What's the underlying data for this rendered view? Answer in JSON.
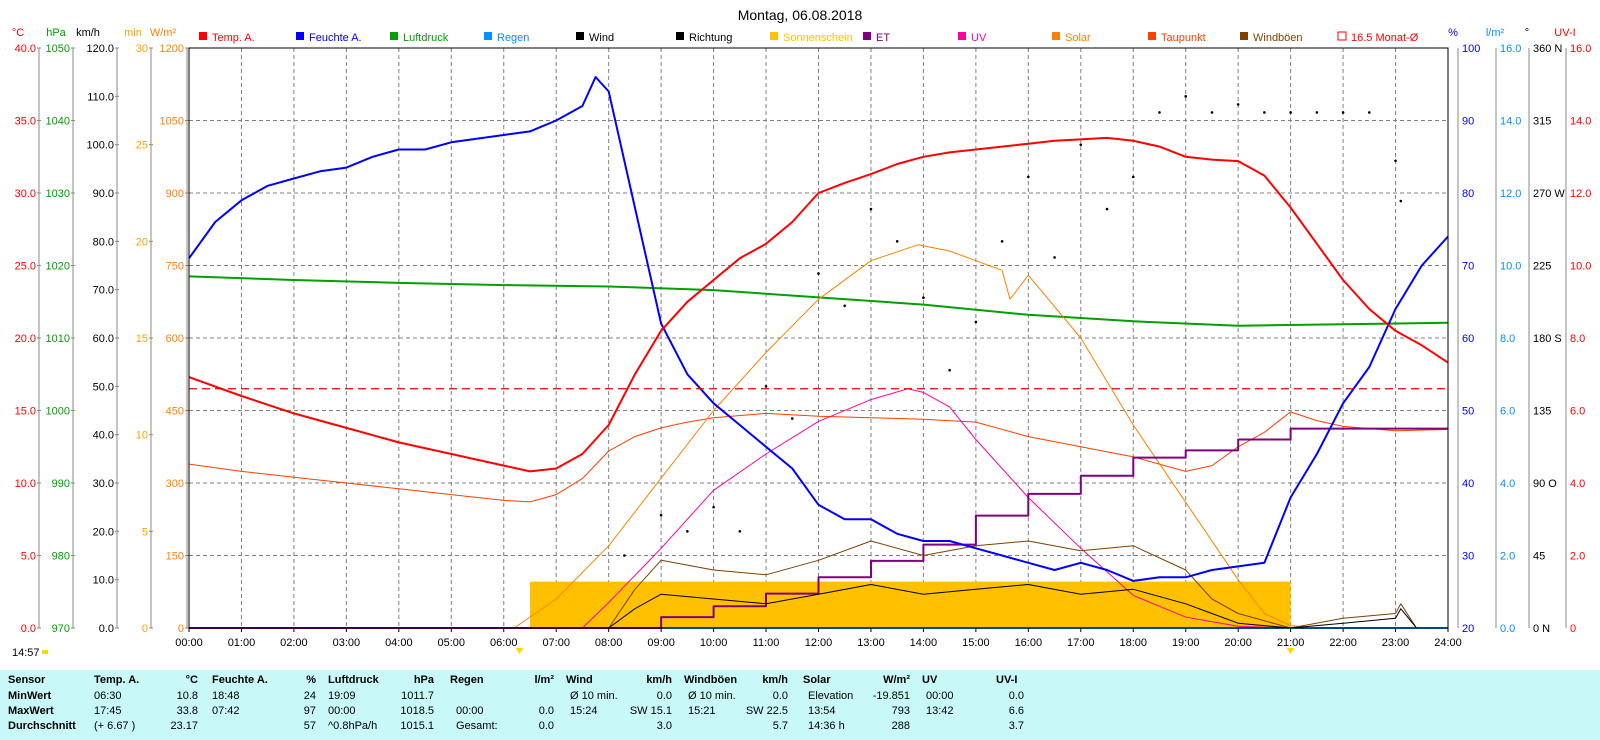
{
  "title": "Montag, 06.08.2018",
  "time_label": "14:57",
  "legend": [
    {
      "label": "Temp. A.",
      "color": "#ff0000"
    },
    {
      "label": "Feuchte A.",
      "color": "#0000ff"
    },
    {
      "label": "Luftdruck",
      "color": "#00a000"
    },
    {
      "label": "Regen",
      "color": "#0090ff"
    },
    {
      "label": "Wind",
      "color": "#000000"
    },
    {
      "label": "Richtung",
      "color": "#000000"
    },
    {
      "label": "Sonnenschein",
      "color": "#ffc000"
    },
    {
      "label": "ET",
      "color": "#800080"
    },
    {
      "label": "UV",
      "color": "#ff00a0"
    },
    {
      "label": "Solar",
      "color": "#ff8000"
    },
    {
      "label": "Taupunkt",
      "color": "#ff4000"
    },
    {
      "label": "Windböen",
      "color": "#804000"
    },
    {
      "label": "16.5 Monat-Ø",
      "color": "#ff0000"
    }
  ],
  "axes_left": [
    {
      "unit": "°C",
      "color": "#ff0000",
      "ticks": [
        "40.0",
        "35.0",
        "30.0",
        "25.0",
        "20.0",
        "15.0",
        "10.0",
        "5.0",
        "0.0"
      ]
    },
    {
      "unit": "hPa",
      "color": "#00a000",
      "ticks": [
        "1050",
        "1040",
        "1030",
        "1020",
        "1010",
        "1000",
        "990",
        "980",
        "970"
      ]
    },
    {
      "unit": "km/h",
      "color": "#000000",
      "ticks": [
        "120.0",
        "110.0",
        "100.0",
        "90.0",
        "80.0",
        "70.0",
        "60.0",
        "50.0",
        "40.0",
        "30.0",
        "20.0",
        "10.0",
        "0.0"
      ]
    },
    {
      "unit": "min",
      "color": "#ffa000",
      "ticks": [
        "30",
        "25",
        "20",
        "15",
        "10",
        "5",
        "0"
      ]
    },
    {
      "unit": "W/m²",
      "color": "#ff8000",
      "ticks": [
        "1200",
        "1050",
        "900",
        "750",
        "600",
        "450",
        "300",
        "150",
        "0"
      ]
    }
  ],
  "axes_right": [
    {
      "unit": "%",
      "color": "#0000ff",
      "ticks": [
        "100",
        "90",
        "80",
        "70",
        "60",
        "50",
        "40",
        "30",
        "20"
      ]
    },
    {
      "unit": "l/m²",
      "color": "#0090ff",
      "ticks": [
        "16.0",
        "14.0",
        "12.0",
        "10.0",
        "8.0",
        "6.0",
        "4.0",
        "2.0",
        "0.0"
      ]
    },
    {
      "unit": "°",
      "color": "#000000",
      "ticks": [
        "360 N",
        "315",
        "270 W",
        "225",
        "180 S",
        "135",
        "90 O",
        "45",
        "0 N"
      ]
    },
    {
      "unit": "UV-I",
      "color": "#ff0000",
      "ticks": [
        "16.0",
        "14.0",
        "12.0",
        "10.0",
        "8.0",
        "6.0",
        "4.0",
        "2.0",
        "0"
      ]
    }
  ],
  "chart_data": {
    "type": "line",
    "title": "Montag, 06.08.2018",
    "x_ticks": [
      "00:00",
      "01:00",
      "02:00",
      "03:00",
      "04:00",
      "05:00",
      "06:00",
      "07:00",
      "08:00",
      "09:00",
      "10:00",
      "11:00",
      "12:00",
      "13:00",
      "14:00",
      "15:00",
      "16:00",
      "17:00",
      "18:00",
      "19:00",
      "20:00",
      "21:00",
      "22:00",
      "23:00",
      "24:00"
    ],
    "x_unit": "hour",
    "grid": true,
    "legend_placement": "top",
    "series": [
      {
        "name": "Temp. A.",
        "axis": "°C",
        "color": "#ff0000",
        "x": [
          0,
          1,
          2,
          3,
          4,
          5,
          6,
          6.5,
          7,
          7.5,
          8,
          8.5,
          9,
          9.5,
          10,
          10.5,
          11,
          11.5,
          12,
          12.5,
          13,
          13.5,
          14,
          14.5,
          15,
          15.5,
          16,
          16.5,
          17,
          17.5,
          18,
          18.5,
          19,
          19.5,
          20,
          20.5,
          21,
          21.5,
          22,
          22.5,
          23,
          23.5,
          24
        ],
        "y": [
          17.3,
          16.0,
          14.8,
          13.8,
          12.8,
          12.0,
          11.2,
          10.8,
          11.0,
          12.0,
          14.0,
          17.5,
          20.5,
          22.5,
          24.0,
          25.5,
          26.5,
          28.0,
          30.0,
          30.7,
          31.3,
          32.0,
          32.5,
          32.8,
          33.0,
          33.2,
          33.4,
          33.6,
          33.7,
          33.8,
          33.6,
          33.2,
          32.5,
          32.3,
          32.2,
          31.2,
          29.0,
          26.5,
          24.0,
          22.0,
          20.5,
          19.5,
          18.3
        ]
      },
      {
        "name": "Feuchte A.",
        "axis": "%",
        "color": "#0000ff",
        "x": [
          0,
          0.5,
          1,
          1.5,
          2,
          2.5,
          3,
          3.5,
          4,
          4.5,
          5,
          5.5,
          6,
          6.5,
          7,
          7.5,
          7.75,
          8,
          8.5,
          9,
          9.5,
          10,
          10.5,
          11,
          11.5,
          12,
          12.5,
          13,
          13.5,
          14,
          14.5,
          15,
          15.5,
          16,
          16.5,
          17,
          17.5,
          18,
          18.5,
          19,
          19.5,
          20,
          20.5,
          21,
          21.5,
          22,
          22.5,
          23,
          23.5,
          24
        ],
        "y": [
          71,
          76,
          79,
          81,
          82,
          83,
          83.5,
          85,
          86,
          86,
          87,
          87.5,
          88,
          88.5,
          90,
          92,
          96,
          94,
          78,
          62,
          55,
          51,
          48,
          45,
          42,
          37,
          35,
          35,
          33,
          32,
          32,
          31,
          30,
          29,
          28,
          29,
          28,
          26.5,
          27,
          27,
          28,
          28.5,
          29,
          38,
          44,
          51,
          56,
          64,
          70,
          74
        ]
      },
      {
        "name": "Luftdruck",
        "axis": "hPa",
        "color": "#00a000",
        "x": [
          0,
          2,
          4,
          6,
          8,
          10,
          12,
          14,
          16,
          18,
          20,
          22,
          24
        ],
        "y": [
          1018.5,
          1018.0,
          1017.6,
          1017.3,
          1017.1,
          1016.6,
          1015.6,
          1014.6,
          1013.2,
          1012.3,
          1011.7,
          1011.9,
          1012.1
        ]
      },
      {
        "name": "Regen",
        "axis": "l/m²",
        "color": "#0090ff",
        "x": [
          0,
          24
        ],
        "y": [
          0,
          0
        ]
      },
      {
        "name": "Sonnenschein",
        "axis": "min",
        "color": "#ffc000",
        "x": [
          6.5,
          21
        ],
        "y": [
          2.4,
          2.4
        ]
      },
      {
        "name": "Solar",
        "axis": "W/m²",
        "color": "#ff8000",
        "x": [
          6.2,
          7,
          8,
          9,
          10,
          11,
          12,
          13,
          13.9,
          14.5,
          15,
          15.5,
          15.65,
          16,
          17,
          18,
          19,
          20,
          20.5,
          21,
          21.5,
          24
        ],
        "y": [
          0,
          60,
          170,
          310,
          450,
          570,
          680,
          760,
          793,
          780,
          760,
          740,
          680,
          730,
          600,
          420,
          260,
          100,
          30,
          5,
          0,
          0
        ]
      },
      {
        "name": "Taupunkt",
        "axis": "°C",
        "color": "#ff4000",
        "x": [
          0,
          1,
          2,
          3,
          4,
          5,
          6,
          6.5,
          7,
          7.5,
          8,
          8.5,
          9,
          9.5,
          10,
          11,
          12,
          13,
          14,
          15,
          16,
          17,
          18,
          19,
          19.5,
          20,
          20.5,
          21,
          21.5,
          22,
          23,
          24
        ],
        "y": [
          11.3,
          10.8,
          10.4,
          10.0,
          9.6,
          9.2,
          8.8,
          8.7,
          9.2,
          10.3,
          12.2,
          13.2,
          13.8,
          14.2,
          14.5,
          14.8,
          14.6,
          14.5,
          14.4,
          14.2,
          13.2,
          12.5,
          11.8,
          10.8,
          11.2,
          12.5,
          13.5,
          14.9,
          14.3,
          13.9,
          13.6,
          13.7
        ]
      },
      {
        "name": "UV",
        "axis": "UV-I",
        "color": "#ff00a0",
        "x": [
          7.5,
          8,
          9,
          10,
          11,
          12,
          13,
          13.7,
          14,
          14.5,
          15,
          16,
          17,
          18,
          18.5,
          19,
          20,
          21,
          24
        ],
        "y": [
          0,
          0.7,
          2.2,
          3.8,
          4.8,
          5.7,
          6.3,
          6.6,
          6.5,
          6.1,
          5.2,
          3.6,
          2.2,
          0.9,
          0.6,
          0.3,
          0.05,
          0,
          0
        ]
      },
      {
        "name": "ET",
        "axis": "l/m²",
        "color": "#800080",
        "x": [
          0,
          9,
          9,
          10,
          10,
          11,
          11,
          12,
          12,
          13,
          13,
          14,
          14,
          15,
          15,
          16,
          16,
          17,
          17,
          18,
          18,
          19,
          19,
          20,
          20,
          21,
          21,
          24
        ],
        "y": [
          0,
          0,
          0.3,
          0.3,
          0.6,
          0.6,
          0.95,
          0.95,
          1.4,
          1.4,
          1.85,
          1.85,
          2.3,
          2.3,
          3.1,
          3.1,
          3.7,
          3.7,
          4.2,
          4.2,
          4.7,
          4.7,
          4.9,
          4.9,
          5.2,
          5.2,
          5.5,
          5.5
        ]
      },
      {
        "name": "Wind",
        "axis": "km/h",
        "color": "#000000",
        "x": [
          6.5,
          8,
          8.5,
          9,
          10,
          11,
          12,
          13,
          14,
          15,
          16,
          17,
          18,
          19,
          19.5,
          20,
          21,
          22,
          23,
          23.1,
          23.4
        ],
        "y": [
          0,
          0,
          4,
          7,
          6,
          5,
          7,
          9,
          7,
          8,
          9,
          7,
          8,
          5,
          3,
          1,
          0,
          1,
          2,
          4,
          0
        ]
      },
      {
        "name": "Windböen",
        "axis": "km/h",
        "color": "#804000",
        "x": [
          6.5,
          8,
          8.5,
          9,
          10,
          11,
          12,
          13,
          14,
          15,
          16,
          17,
          18,
          19,
          19.5,
          20,
          21,
          22,
          23,
          23.1,
          23.4
        ],
        "y": [
          0,
          0,
          8,
          14,
          12,
          11,
          14,
          18,
          15,
          17,
          18,
          16,
          17,
          12,
          6,
          3,
          0,
          2,
          3,
          5,
          0
        ]
      },
      {
        "name": "Richtung",
        "axis": "°",
        "color": "#000000",
        "x": [
          8.3,
          9,
          9.5,
          10,
          10.5,
          11,
          11.5,
          12,
          12.5,
          13,
          13.5,
          14,
          14.5,
          15,
          15.5,
          16,
          16.5,
          17,
          17.5,
          18,
          18.5,
          19,
          19.5,
          20,
          20.5,
          21,
          21.5,
          22,
          22.5,
          23,
          23.1
        ],
        "y": [
          45,
          70,
          60,
          75,
          60,
          150,
          130,
          220,
          200,
          260,
          240,
          205,
          160,
          190,
          240,
          280,
          230,
          300,
          260,
          280,
          320,
          330,
          320,
          325,
          320,
          320,
          320,
          320,
          320,
          290,
          265
        ]
      }
    ],
    "reference_lines": [
      {
        "name": "16.5 Monat-Ø",
        "axis": "°C",
        "y": 16.5,
        "style": "dashed"
      }
    ],
    "markers": [
      {
        "x": 6.3
      },
      {
        "x": 21.0
      }
    ]
  },
  "stats": {
    "header": {
      "sensor": "Sensor",
      "temp": {
        "label": "Temp. A.",
        "unit": "°C"
      },
      "hum": {
        "label": "Feuchte A.",
        "unit": "%"
      },
      "press": {
        "label": "Luftdruck",
        "unit": "hPa"
      },
      "rain": {
        "label": "Regen",
        "unit": "l/m²"
      },
      "wind": {
        "label": "Wind",
        "unit": "km/h"
      },
      "gust": {
        "label": "Windböen",
        "unit": "km/h"
      },
      "solar": {
        "label": "Solar",
        "unit": "W/m²"
      },
      "uv": {
        "label": "UV",
        "unit": "UV-I"
      }
    },
    "rows": [
      {
        "label": "MinWert",
        "temp_time": "06:30",
        "temp_val": "10.8",
        "hum_time": "18:48",
        "hum_val": "24",
        "press_time": "19:09",
        "press_val": "1011.7",
        "rain_time": "",
        "rain_val": "",
        "wind_time": "Ø 10 min.",
        "wind_val": "0.0",
        "gust_time": "Ø 10 min.",
        "gust_val": "0.0",
        "solar_time": "Elevation",
        "solar_val": "-19.851",
        "uv_time": "00:00",
        "uv_val": "0.0"
      },
      {
        "label": "MaxWert",
        "temp_time": "17:45",
        "temp_val": "33.8",
        "hum_time": "07:42",
        "hum_val": "97",
        "press_time": "00:00",
        "press_val": "1018.5",
        "rain_time": "00:00",
        "rain_val": "0.0",
        "wind_time": "15:24",
        "wind_val": "SW 15.1",
        "gust_time": "15:21",
        "gust_val": "SW 22.5",
        "solar_time": "13:54",
        "solar_val": "793",
        "uv_time": "13:42",
        "uv_val": "6.6"
      },
      {
        "label": "Durchschnitt",
        "temp_time": "(+ 6.67 )",
        "temp_val": "23.17",
        "hum_time": "",
        "hum_val": "57",
        "press_time": "^0.8hPa/h",
        "press_val": "1015.1",
        "rain_time": "Gesamt:",
        "rain_val": "0.0",
        "wind_time": "",
        "wind_val": "3.0",
        "gust_time": "",
        "gust_val": "5.7",
        "solar_time": "14:36 h",
        "solar_val": "288",
        "uv_time": "",
        "uv_val": "3.7"
      }
    ]
  }
}
